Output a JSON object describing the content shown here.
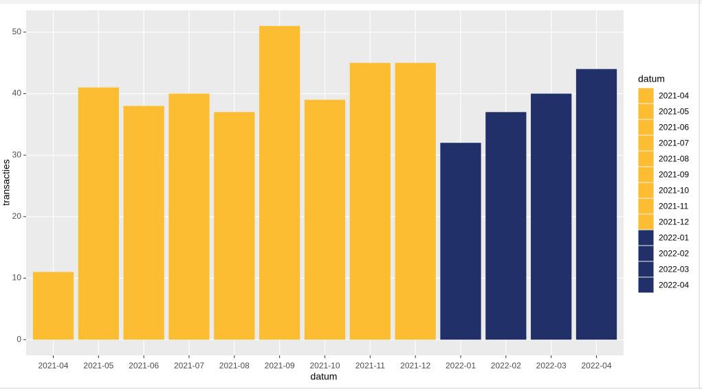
{
  "chart_data": {
    "type": "bar",
    "x_label": "datum",
    "y_label": "transacties",
    "legend_title": "datum",
    "categories": [
      "2021-04",
      "2021-05",
      "2021-06",
      "2021-07",
      "2021-08",
      "2021-09",
      "2021-10",
      "2021-11",
      "2021-12",
      "2022-01",
      "2022-02",
      "2022-03",
      "2022-04"
    ],
    "values": [
      11,
      41,
      38,
      40,
      37,
      51,
      39,
      45,
      45,
      32,
      37,
      40,
      44
    ],
    "colors": [
      "#FDBD33",
      "#FDBD33",
      "#FDBD33",
      "#FDBD33",
      "#FDBD33",
      "#FDBD33",
      "#FDBD33",
      "#FDBD33",
      "#FDBD33",
      "#213068",
      "#213068",
      "#213068",
      "#213068"
    ],
    "ylim": [
      -2.55,
      53.55
    ],
    "yticks": [
      0,
      10,
      20,
      30,
      40,
      50
    ],
    "grid": true,
    "legend_position": "right"
  }
}
